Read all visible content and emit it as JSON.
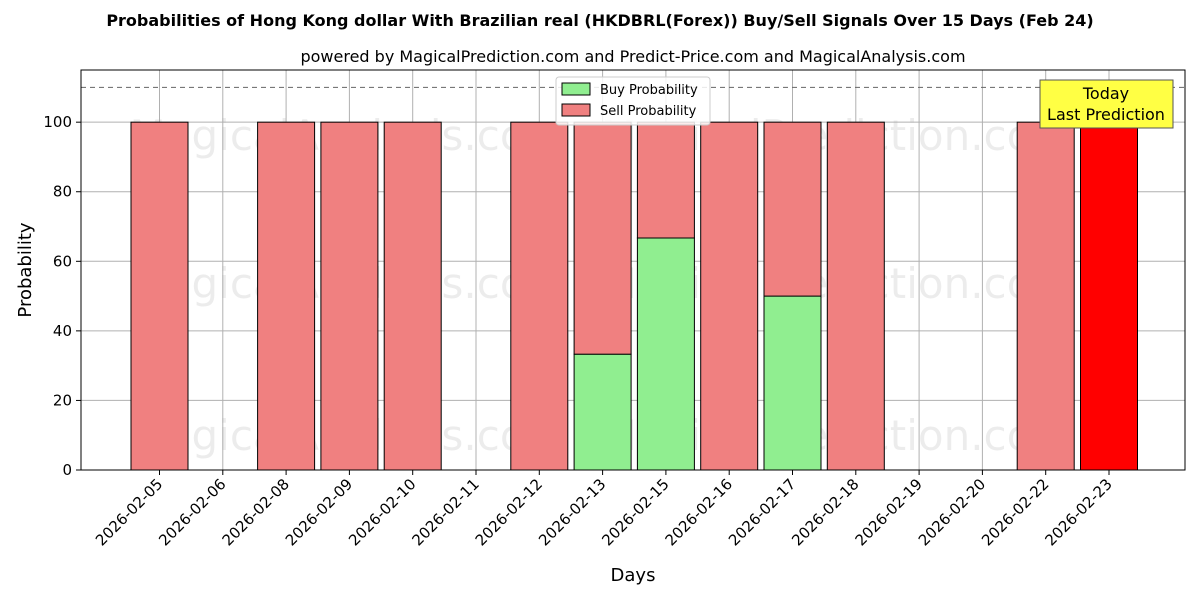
{
  "chart_data": {
    "type": "bar",
    "title": "Probabilities of Hong Kong dollar With Brazilian real (HKDBRL(Forex)) Buy/Sell Signals Over 15 Days (Feb 24)",
    "subtitle": "powered by MagicalPrediction.com and Predict-Price.com and MagicalAnalysis.com",
    "xlabel": "Days",
    "ylabel": "Probability",
    "ylim": [
      0,
      115
    ],
    "yticks": [
      0,
      20,
      40,
      60,
      80,
      100
    ],
    "reference_line": 110,
    "grid": true,
    "stacked": true,
    "categories": [
      "2026-02-05",
      "2026-02-06",
      "2026-02-08",
      "2026-02-09",
      "2026-02-10",
      "2026-02-11",
      "2026-02-12",
      "2026-02-13",
      "2026-02-15",
      "2026-02-16",
      "2026-02-17",
      "2026-02-18",
      "2026-02-19",
      "2026-02-20",
      "2026-02-22",
      "2026-02-23"
    ],
    "series": [
      {
        "name": "Buy Probability",
        "color": "#90ee90",
        "values": [
          0,
          null,
          0,
          0,
          0,
          null,
          0,
          33.3,
          66.7,
          0,
          50,
          0,
          null,
          null,
          0,
          0
        ]
      },
      {
        "name": "Sell Probability",
        "color": "#f08080",
        "values": [
          100,
          null,
          100,
          100,
          100,
          null,
          100,
          66.7,
          33.3,
          100,
          50,
          100,
          null,
          null,
          100,
          100
        ]
      }
    ],
    "highlight": {
      "category": "2026-02-23",
      "color": "#ff0000"
    },
    "legend_position": "top-center",
    "annotation": {
      "lines": [
        "Today",
        "Last Prediction"
      ],
      "background": "#ffff44"
    },
    "watermarks": [
      "MagicalAnalysis.com",
      "MagicalPrediction.com"
    ]
  }
}
